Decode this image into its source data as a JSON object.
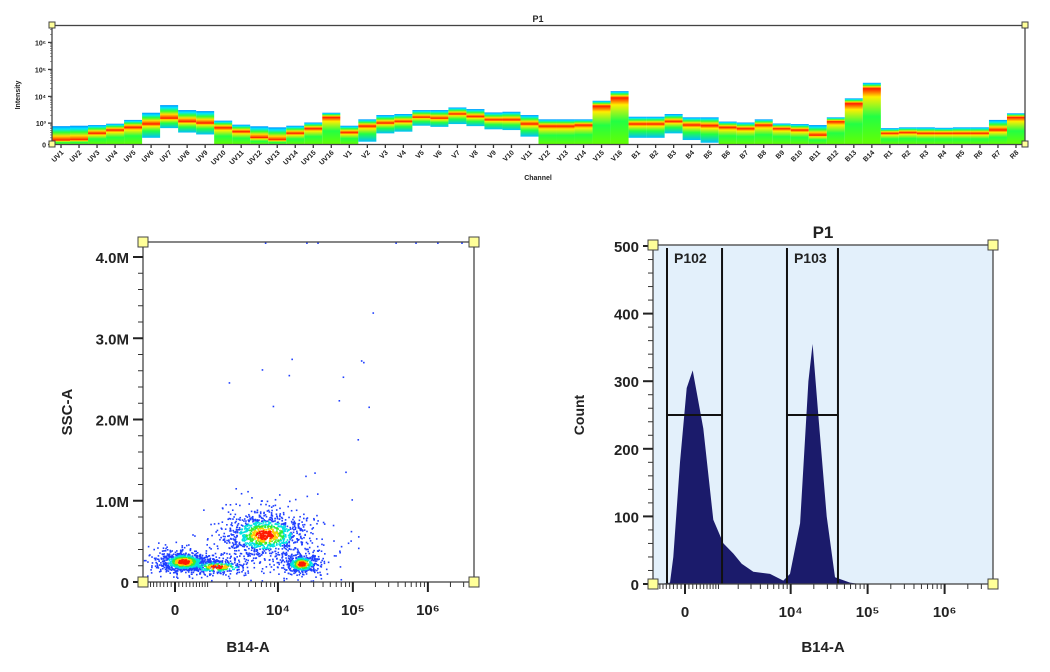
{
  "chart_data": [
    {
      "type": "heatmap",
      "title": "P1",
      "ylabel": "Intensity",
      "xlabel": "Channel",
      "y_scale": "arcsinh",
      "y_ticks": [
        {
          "value": 0,
          "label": "0"
        },
        {
          "value": 1000,
          "label": "10³"
        },
        {
          "value": 10000,
          "label": "10⁴"
        },
        {
          "value": 100000,
          "label": "10⁵"
        },
        {
          "value": 1000000,
          "label": "10⁶"
        }
      ],
      "channels": [
        {
          "name": "UV1",
          "low": 0,
          "peak": 120,
          "high": 760
        },
        {
          "name": "UV2",
          "low": 0,
          "peak": 130,
          "high": 790
        },
        {
          "name": "UV3",
          "low": 0,
          "peak": 365,
          "high": 840
        },
        {
          "name": "UV4",
          "low": 0,
          "peak": 520,
          "high": 950
        },
        {
          "name": "UV5",
          "low": 0,
          "peak": 680,
          "high": 1330
        },
        {
          "name": "UV6",
          "low": 200,
          "peak": 920,
          "high": 2480
        },
        {
          "name": "UV7",
          "low": 630,
          "peak": 1530,
          "high": 4770
        },
        {
          "name": "UV8",
          "low": 400,
          "peak": 1150,
          "high": 3120
        },
        {
          "name": "UV9",
          "low": 320,
          "peak": 1000,
          "high": 2860
        },
        {
          "name": "UV10",
          "low": 0,
          "peak": 650,
          "high": 1250
        },
        {
          "name": "UV11",
          "low": 0,
          "peak": 440,
          "high": 870
        },
        {
          "name": "UV12",
          "low": 0,
          "peak": 200,
          "high": 750
        },
        {
          "name": "UV13",
          "low": 0,
          "peak": 130,
          "high": 680
        },
        {
          "name": "UV14",
          "low": 0,
          "peak": 365,
          "high": 790
        },
        {
          "name": "UV15",
          "low": 0,
          "peak": 600,
          "high": 1060
        },
        {
          "name": "UV16",
          "low": 0,
          "peak": 1670,
          "high": 2480
        },
        {
          "name": "V1",
          "low": 0,
          "peak": 400,
          "high": 790
        },
        {
          "name": "V2",
          "low": 80,
          "peak": 760,
          "high": 1400
        },
        {
          "name": "V3",
          "low": 365,
          "peak": 1000,
          "high": 2030
        },
        {
          "name": "V4",
          "low": 440,
          "peak": 1150,
          "high": 2220
        },
        {
          "name": "V5",
          "low": 790,
          "peak": 1670,
          "high": 3120
        },
        {
          "name": "V6",
          "low": 710,
          "peak": 1530,
          "high": 3120
        },
        {
          "name": "V7",
          "low": 920,
          "peak": 2220,
          "high": 3900
        },
        {
          "name": "V8",
          "low": 760,
          "peak": 1760,
          "high": 3400
        },
        {
          "name": "V9",
          "low": 560,
          "peak": 1330,
          "high": 2550
        },
        {
          "name": "V10",
          "low": 520,
          "peak": 1330,
          "high": 2700
        },
        {
          "name": "V11",
          "low": 240,
          "peak": 920,
          "high": 2030
        },
        {
          "name": "V12",
          "low": 0,
          "peak": 760,
          "high": 1400
        },
        {
          "name": "V13",
          "low": 0,
          "peak": 760,
          "high": 1400
        },
        {
          "name": "V14",
          "low": 0,
          "peak": 840,
          "high": 1400
        },
        {
          "name": "V15",
          "low": 0,
          "peak": 4400,
          "high": 6900
        },
        {
          "name": "V16",
          "low": 0,
          "peak": 8900,
          "high": 15700
        },
        {
          "name": "B1",
          "low": 200,
          "peak": 920,
          "high": 1760
        },
        {
          "name": "B2",
          "low": 200,
          "peak": 920,
          "high": 1760
        },
        {
          "name": "B3",
          "low": 365,
          "peak": 1150,
          "high": 2220
        },
        {
          "name": "B4",
          "low": 130,
          "peak": 840,
          "high": 1670
        },
        {
          "name": "B5",
          "low": 50,
          "peak": 790,
          "high": 1670
        },
        {
          "name": "B6",
          "low": 0,
          "peak": 680,
          "high": 1150
        },
        {
          "name": "B7",
          "low": 0,
          "peak": 600,
          "high": 1060
        },
        {
          "name": "B8",
          "low": 0,
          "peak": 840,
          "high": 1400
        },
        {
          "name": "B9",
          "low": 0,
          "peak": 600,
          "high": 970
        },
        {
          "name": "B10",
          "low": 0,
          "peak": 520,
          "high": 920
        },
        {
          "name": "B11",
          "low": 0,
          "peak": 290,
          "high": 840
        },
        {
          "name": "B12",
          "low": 0,
          "peak": 1150,
          "high": 1670
        },
        {
          "name": "B13",
          "low": 0,
          "peak": 5500,
          "high": 8500
        },
        {
          "name": "B14",
          "low": 0,
          "peak": 19700,
          "high": 32000
        },
        {
          "name": "R1",
          "low": 0,
          "peak": 365,
          "high": 630
        },
        {
          "name": "R2",
          "low": 0,
          "peak": 400,
          "high": 680
        },
        {
          "name": "R3",
          "low": 0,
          "peak": 365,
          "high": 680
        },
        {
          "name": "R4",
          "low": 0,
          "peak": 365,
          "high": 650
        },
        {
          "name": "R5",
          "low": 0,
          "peak": 365,
          "high": 680
        },
        {
          "name": "R6",
          "low": 0,
          "peak": 365,
          "high": 680
        },
        {
          "name": "R7",
          "low": 0,
          "peak": 520,
          "high": 1330
        },
        {
          "name": "R8",
          "low": 0,
          "peak": 1670,
          "high": 2370
        }
      ]
    },
    {
      "type": "scatter",
      "xlabel": "B14-A",
      "ylabel": "SSC-A",
      "x_scale": "arcsinh",
      "xlim": [
        -1000,
        4100000
      ],
      "ylim": [
        0,
        4170000
      ],
      "x_ticks": [
        {
          "value": 0,
          "label": "0"
        },
        {
          "value": 10000,
          "label": "10⁴"
        },
        {
          "value": 100000,
          "label": "10⁵"
        },
        {
          "value": 1000000,
          "label": "10⁶"
        }
      ],
      "y_ticks": [
        {
          "value": 0,
          "label": "0"
        },
        {
          "value": 1000000,
          "label": "1.0M"
        },
        {
          "value": 2000000,
          "label": "2.0M"
        },
        {
          "value": 3000000,
          "label": "3.0M"
        },
        {
          "value": 4000000,
          "label": "4.0M"
        }
      ],
      "populations": [
        {
          "x": 238,
          "y": 246000,
          "x_spread_decades": 0.16,
          "y_spread": 60000,
          "n": 900
        },
        {
          "x": 1430,
          "y": 185000,
          "x_spread_decades": 0.2,
          "y_spread": 40000,
          "n": 300
        },
        {
          "x": 6700,
          "y": 578000,
          "x_spread_decades": 0.26,
          "y_spread": 125000,
          "n": 1200
        },
        {
          "x": 21000,
          "y": 220000,
          "x_spread_decades": 0.11,
          "y_spread": 55000,
          "n": 500
        }
      ],
      "points": [
        [
          2180,
          2450000
        ],
        [
          6200,
          2610000
        ],
        [
          15500,
          2740000
        ],
        [
          14200,
          2540000
        ],
        [
          8700,
          2160000
        ],
        [
          74800,
          2520000
        ],
        [
          66000,
          2230000
        ],
        [
          131000,
          2720000
        ],
        [
          140000,
          2700000
        ],
        [
          165000,
          2150000
        ],
        [
          118000,
          1750000
        ],
        [
          187000,
          3310000
        ],
        [
          81000,
          1350000
        ],
        [
          98000,
          1010000
        ],
        [
          23700,
          1300000
        ],
        [
          31300,
          1340000
        ],
        [
          6840,
          4170000
        ],
        [
          24400,
          4170000
        ],
        [
          34300,
          4170000
        ],
        [
          377000,
          4170000
        ],
        [
          695000,
          4170000
        ],
        [
          1360000,
          4170000
        ],
        [
          2850000,
          4170000
        ]
      ],
      "colors": {
        "low": "#1f3fff",
        "mid": "#00e0e0",
        "high": "#ff1a00"
      }
    },
    {
      "type": "area",
      "title": "P1",
      "xlabel": "B14-A",
      "ylabel": "Count",
      "x_scale": "arcsinh",
      "xlim": [
        -1000,
        4100000
      ],
      "ylim": [
        0,
        500
      ],
      "x_ticks": [
        {
          "value": 0,
          "label": "0"
        },
        {
          "value": 10000,
          "label": "10⁴"
        },
        {
          "value": 100000,
          "label": "10⁵"
        },
        {
          "value": 1000000,
          "label": "10⁶"
        }
      ],
      "y_ticks": [
        {
          "value": 0,
          "label": "0"
        },
        {
          "value": 100,
          "label": "100"
        },
        {
          "value": 200,
          "label": "200"
        },
        {
          "value": 300,
          "label": "300"
        },
        {
          "value": 400,
          "label": "400"
        },
        {
          "value": 500,
          "label": "500"
        }
      ],
      "x": [
        -697,
        -394,
        -304,
        -128,
        43,
        197,
        490,
        809,
        1203,
        1705,
        2236,
        3222,
        5364,
        8024,
        9800,
        13260,
        17000,
        19300,
        22900,
        29400,
        37700,
        59000,
        79700
      ],
      "counts": [
        0,
        2,
        40,
        180,
        290,
        316,
        230,
        95,
        60,
        45,
        30,
        18,
        15,
        5,
        15,
        90,
        300,
        355,
        250,
        100,
        10,
        2,
        0
      ],
      "gates": [
        {
          "name": "P102",
          "range": [
            -480,
            1146
          ],
          "level": 250
        },
        {
          "name": "P103",
          "range": [
            8950,
            41200
          ],
          "level": 250
        }
      ],
      "colors": {
        "fill": "#1b1b6b",
        "background": "#e3f0fb"
      }
    }
  ]
}
